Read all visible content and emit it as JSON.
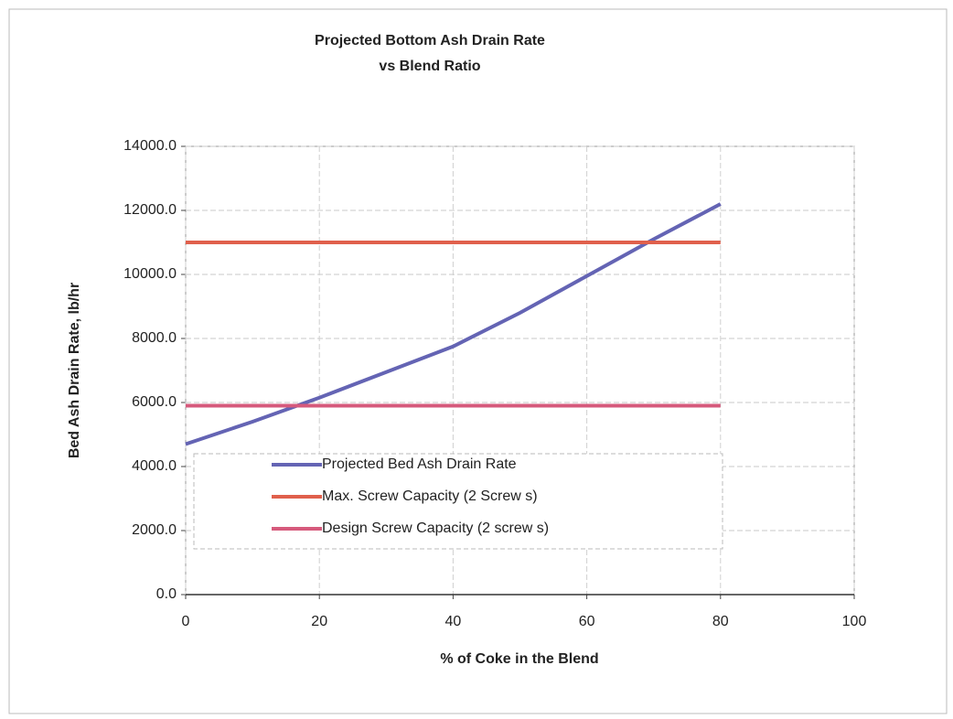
{
  "chart_data": {
    "type": "line",
    "title_lines": [
      "Projected Bottom Ash Drain Rate",
      "vs Blend Ratio"
    ],
    "x_label": "% of Coke in the Blend",
    "y_label": "Bed Ash  Drain Rate, lb/hr",
    "x": [
      0,
      10,
      20,
      30,
      40,
      50,
      60,
      70,
      80
    ],
    "series": [
      {
        "name": "Projected Bed Ash Drain Rate",
        "color": "#6464b4",
        "values": [
          4700,
          5400,
          6150,
          6950,
          7750,
          8800,
          9950,
          11100,
          12200
        ]
      },
      {
        "name": "Max. Screw Capacity (2 Screw s)",
        "color": "#e0604c",
        "values": [
          11000,
          11000,
          11000,
          11000,
          11000,
          11000,
          11000,
          11000,
          11000
        ]
      },
      {
        "name": "Design Screw  Capacity (2 screw s)",
        "color": "#d65a7c",
        "values": [
          5900,
          5900,
          5900,
          5900,
          5900,
          5900,
          5900,
          5900,
          5900
        ]
      }
    ],
    "xlim": [
      0,
      100
    ],
    "xticks": [
      0,
      20,
      40,
      60,
      80,
      100
    ],
    "ylim": [
      0,
      14000
    ],
    "yticks": [
      {
        "value": 0,
        "label": "0.0"
      },
      {
        "value": 2000,
        "label": "2000.0"
      },
      {
        "value": 4000,
        "label": "4000.0"
      },
      {
        "value": 6000,
        "label": "6000.0"
      },
      {
        "value": 8000,
        "label": "8000.0"
      },
      {
        "value": 10000,
        "label": "10000.0"
      },
      {
        "value": 12000,
        "label": "12000.0"
      },
      {
        "value": 14000,
        "label": "14000.0"
      }
    ],
    "grid": true,
    "legend": "lower center"
  }
}
